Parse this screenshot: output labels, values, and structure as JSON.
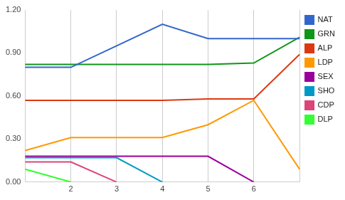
{
  "chart_data": {
    "type": "line",
    "categories": [
      null,
      "2",
      "3",
      "4",
      "5",
      "6",
      null
    ],
    "series": [
      {
        "name": "NAT",
        "color": "#3366cc",
        "values": [
          0.8,
          0.8,
          0.95,
          1.1,
          1.0,
          1.0,
          1.0
        ]
      },
      {
        "name": "GRN",
        "color": "#109618",
        "values": [
          0.82,
          0.82,
          0.82,
          0.82,
          0.82,
          0.83,
          1.01
        ]
      },
      {
        "name": "ALP",
        "color": "#dc3912",
        "values": [
          0.57,
          0.57,
          0.57,
          0.57,
          0.58,
          0.58,
          0.89
        ]
      },
      {
        "name": "LDP",
        "color": "#ff9900",
        "values": [
          0.22,
          0.31,
          0.31,
          0.31,
          0.4,
          0.57,
          0.09
        ]
      },
      {
        "name": "SEX",
        "color": "#990099",
        "values": [
          0.18,
          0.18,
          0.18,
          0.18,
          0.18,
          0.0,
          null
        ]
      },
      {
        "name": "SHO",
        "color": "#0099c6",
        "values": [
          0.17,
          0.17,
          0.17,
          0.0,
          null,
          null,
          null
        ]
      },
      {
        "name": "CDP",
        "color": "#dd4477",
        "values": [
          0.14,
          0.14,
          0.0,
          null,
          null,
          null,
          null
        ]
      },
      {
        "name": "DLP",
        "color": "#33ff33",
        "values": [
          0.09,
          0.0,
          null,
          null,
          null,
          null,
          null
        ]
      }
    ],
    "ylim": [
      0,
      1.2
    ],
    "yticks": [
      {
        "value": 0,
        "label": "0.00"
      },
      {
        "value": 0.3,
        "label": "0.30"
      },
      {
        "value": 0.6,
        "label": "0.60"
      },
      {
        "value": 0.9,
        "label": "0.90"
      },
      {
        "value": 1.2,
        "label": "1.20"
      }
    ],
    "grid": "x",
    "legend": "right"
  }
}
